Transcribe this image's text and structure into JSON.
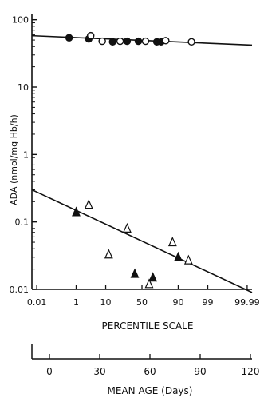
{
  "chart_data": {
    "type": "scatter",
    "title": "",
    "ylabel": "ADA (nmol/mg Hb/h)",
    "xlabel": "PERCENTILE SCALE",
    "y_scale": "log",
    "ylim": [
      0.01,
      120
    ],
    "y_ticks": [
      100,
      10,
      1,
      0.1,
      0.01
    ],
    "y_tick_labels": [
      "100",
      "10",
      "1",
      "0.1",
      "0.01"
    ],
    "x_scale": "probability",
    "xlim": [
      0.005,
      99.995
    ],
    "x_ticks": [
      0.01,
      1,
      10,
      50,
      90,
      99,
      99.99
    ],
    "x_tick_labels": [
      "0.01",
      "1",
      "10",
      "50",
      "90",
      "99",
      "99.99"
    ],
    "grid": false,
    "series": [
      {
        "marker": "filled-circle",
        "points": [
          {
            "x": 0.5,
            "y": 54
          },
          {
            "x": 3,
            "y": 52
          },
          {
            "x": 15,
            "y": 47
          },
          {
            "x": 30,
            "y": 48
          },
          {
            "x": 45,
            "y": 48
          },
          {
            "x": 70,
            "y": 47
          },
          {
            "x": 75,
            "y": 47
          }
        ]
      },
      {
        "marker": "open-circle",
        "points": [
          {
            "x": 3.5,
            "y": 58
          },
          {
            "x": 8,
            "y": 48
          },
          {
            "x": 22,
            "y": 48
          },
          {
            "x": 55,
            "y": 48
          },
          {
            "x": 80,
            "y": 49
          },
          {
            "x": 96,
            "y": 47
          }
        ]
      },
      {
        "marker": "filled-triangle",
        "points": [
          {
            "x": 1,
            "y": 0.14
          },
          {
            "x": 40,
            "y": 0.017
          },
          {
            "x": 65,
            "y": 0.015
          },
          {
            "x": 90,
            "y": 0.03
          }
        ]
      },
      {
        "marker": "open-triangle",
        "points": [
          {
            "x": 3,
            "y": 0.18
          },
          {
            "x": 12,
            "y": 0.033
          },
          {
            "x": 30,
            "y": 0.08
          },
          {
            "x": 60,
            "y": 0.012
          },
          {
            "x": 86,
            "y": 0.05
          },
          {
            "x": 95,
            "y": 0.027
          }
        ]
      }
    ],
    "fit_lines": [
      {
        "x": [
          0.005,
          99.995
        ],
        "y": [
          58,
          42
        ]
      },
      {
        "x": [
          0.005,
          99.995
        ],
        "y": [
          0.3,
          0.009
        ]
      }
    ],
    "secondary_axis": {
      "label": "MEAN AGE (Days)",
      "ticks": [
        0,
        30,
        60,
        90,
        120
      ],
      "tick_labels": [
        "0",
        "30",
        "60",
        "90",
        "120"
      ],
      "range": [
        0,
        120
      ]
    }
  }
}
